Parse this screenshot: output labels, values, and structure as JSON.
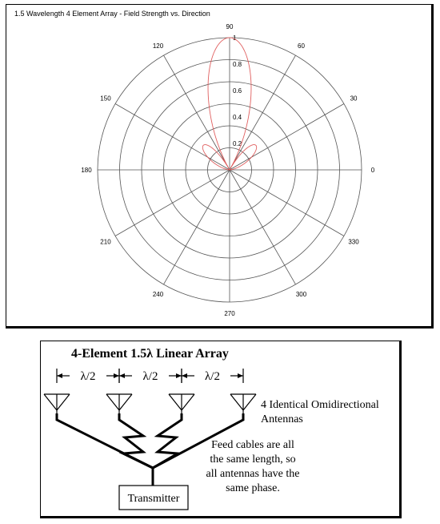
{
  "chart_data": {
    "type": "polar",
    "title": "1.5 Wavelength 4 Element Array - Field Strength vs. Direction",
    "angle_ticks_deg": [
      0,
      30,
      60,
      90,
      120,
      150,
      180,
      210,
      240,
      270,
      300,
      330
    ],
    "radial_ticks": [
      "0.2",
      "0.4",
      "0.6",
      "0.8",
      "1"
    ],
    "radial_range": [
      0,
      1
    ],
    "radial_grid_count": 6,
    "spoke_step_deg": 30,
    "grid": true,
    "series": [
      {
        "color": "#e06060",
        "model": "array_factor",
        "elements": 4,
        "element_spacing_wavelengths": 0.5,
        "relative_phase": 0,
        "angle_range_deg": [
          0,
          180
        ],
        "peak_angle_deg": 90,
        "peak_value": 1
      }
    ]
  },
  "diagram": {
    "title": "4-Element 1.5λ Linear Array",
    "spacing_labels": [
      "λ/2",
      "λ/2",
      "λ/2"
    ],
    "antenna_count": 4,
    "antenna_label_line1": "4 Identical Omidirectional",
    "antenna_label_line2": "Antennas",
    "feed_note_lines": [
      "Feed cables are all",
      "the same length, so",
      "all antennas have the",
      "same phase."
    ],
    "transmitter_label": "Transmitter",
    "line_color": "#000000"
  }
}
